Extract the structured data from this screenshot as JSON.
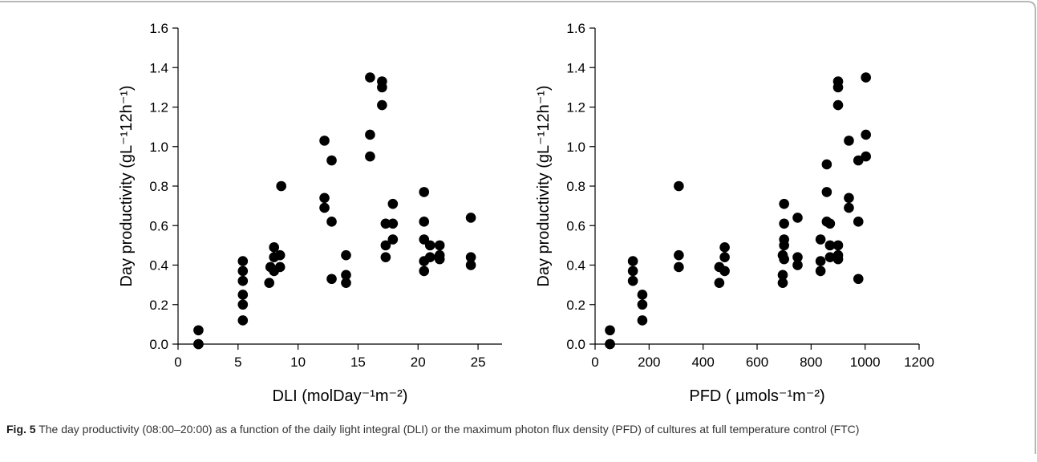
{
  "caption": {
    "label": "Fig. 5",
    "text": "The day productivity (08:00–20:00) as a function of the daily light integral (DLI) or the maximum photon flux density (PFD) of cultures at full temperature control (FTC)"
  },
  "chart_data": [
    {
      "type": "scatter",
      "xlabel": "DLI  (molDay⁻¹m⁻²)",
      "ylabel": "Day productivity (gL⁻¹12h⁻¹)",
      "xlim": [
        0,
        27
      ],
      "ylim": [
        0,
        1.6
      ],
      "x_ticks": [
        "0",
        "5",
        "10",
        "15",
        "20",
        "25"
      ],
      "y_ticks": [
        "0.0",
        "0.2",
        "0.4",
        "0.6",
        "0.8",
        "1.0",
        "1.2",
        "1.4",
        "1.6"
      ],
      "marker_color": "#000000",
      "points": [
        [
          1.7,
          0.0
        ],
        [
          1.7,
          0.07
        ],
        [
          1.7,
          0.0
        ],
        [
          5.4,
          0.12
        ],
        [
          5.4,
          0.2
        ],
        [
          5.4,
          0.25
        ],
        [
          5.4,
          0.32
        ],
        [
          5.4,
          0.37
        ],
        [
          5.4,
          0.42
        ],
        [
          7.6,
          0.31
        ],
        [
          7.7,
          0.39
        ],
        [
          8.0,
          0.37
        ],
        [
          8.0,
          0.44
        ],
        [
          8.0,
          0.49
        ],
        [
          8.5,
          0.39
        ],
        [
          8.5,
          0.45
        ],
        [
          8.6,
          0.8
        ],
        [
          12.2,
          0.69
        ],
        [
          12.2,
          0.74
        ],
        [
          12.2,
          1.03
        ],
        [
          12.8,
          0.33
        ],
        [
          12.8,
          0.62
        ],
        [
          12.8,
          0.93
        ],
        [
          14.0,
          0.31
        ],
        [
          14.0,
          0.35
        ],
        [
          14.0,
          0.45
        ],
        [
          16.0,
          0.95
        ],
        [
          16.0,
          1.06
        ],
        [
          16.0,
          1.35
        ],
        [
          17.0,
          1.21
        ],
        [
          17.0,
          1.3
        ],
        [
          17.0,
          1.33
        ],
        [
          17.3,
          0.44
        ],
        [
          17.3,
          0.5
        ],
        [
          17.3,
          0.61
        ],
        [
          17.9,
          0.53
        ],
        [
          17.9,
          0.61
        ],
        [
          17.9,
          0.71
        ],
        [
          20.5,
          0.37
        ],
        [
          20.5,
          0.42
        ],
        [
          20.5,
          0.53
        ],
        [
          20.5,
          0.62
        ],
        [
          20.5,
          0.77
        ],
        [
          21.0,
          0.44
        ],
        [
          21.0,
          0.5
        ],
        [
          21.8,
          0.43
        ],
        [
          21.8,
          0.45
        ],
        [
          21.8,
          0.5
        ],
        [
          24.4,
          0.4
        ],
        [
          24.4,
          0.44
        ],
        [
          24.4,
          0.64
        ]
      ]
    },
    {
      "type": "scatter",
      "xlabel": "PFD ( µmols⁻¹m⁻²)",
      "ylabel": "Day productivity (gL⁻¹12h⁻¹)",
      "xlim": [
        0,
        1200
      ],
      "ylim": [
        0,
        1.6
      ],
      "x_ticks": [
        "0",
        "200",
        "400",
        "600",
        "800",
        "1000",
        "1200"
      ],
      "y_ticks": [
        "0.0",
        "0.2",
        "0.4",
        "0.6",
        "0.8",
        "1.0",
        "1.2",
        "1.4",
        "1.6"
      ],
      "marker_color": "#000000",
      "points": [
        [
          55,
          0.0
        ],
        [
          55,
          0.07
        ],
        [
          55,
          0.0
        ],
        [
          140,
          0.32
        ],
        [
          140,
          0.37
        ],
        [
          140,
          0.42
        ],
        [
          175,
          0.12
        ],
        [
          175,
          0.2
        ],
        [
          175,
          0.25
        ],
        [
          310,
          0.39
        ],
        [
          310,
          0.45
        ],
        [
          310,
          0.8
        ],
        [
          460,
          0.31
        ],
        [
          460,
          0.39
        ],
        [
          480,
          0.37
        ],
        [
          480,
          0.44
        ],
        [
          480,
          0.49
        ],
        [
          695,
          0.31
        ],
        [
          695,
          0.35
        ],
        [
          695,
          0.45
        ],
        [
          700,
          0.43
        ],
        [
          700,
          0.5
        ],
        [
          700,
          0.53
        ],
        [
          700,
          0.61
        ],
        [
          700,
          0.71
        ],
        [
          750,
          0.4
        ],
        [
          750,
          0.44
        ],
        [
          750,
          0.64
        ],
        [
          835,
          0.37
        ],
        [
          835,
          0.42
        ],
        [
          835,
          0.53
        ],
        [
          858,
          0.62
        ],
        [
          858,
          0.77
        ],
        [
          858,
          0.91
        ],
        [
          870,
          0.44
        ],
        [
          870,
          0.5
        ],
        [
          870,
          0.61
        ],
        [
          900,
          0.43
        ],
        [
          900,
          0.45
        ],
        [
          900,
          0.5
        ],
        [
          900,
          1.21
        ],
        [
          900,
          1.3
        ],
        [
          900,
          1.33
        ],
        [
          940,
          0.69
        ],
        [
          940,
          0.74
        ],
        [
          940,
          1.03
        ],
        [
          975,
          0.33
        ],
        [
          975,
          0.62
        ],
        [
          975,
          0.93
        ],
        [
          1003,
          0.95
        ],
        [
          1003,
          1.06
        ],
        [
          1003,
          1.35
        ]
      ]
    }
  ]
}
